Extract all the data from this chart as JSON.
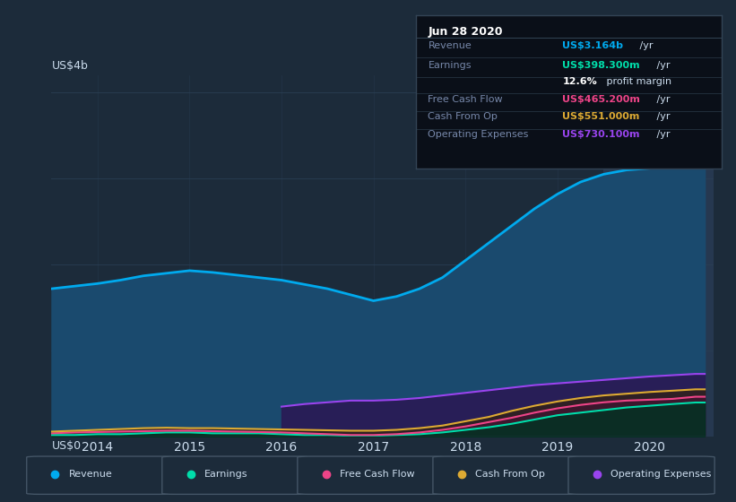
{
  "background_color": "#1c2b3a",
  "plot_bg_color": "#1c2b3a",
  "grid_color": "#2a3f55",
  "text_color": "#ccddee",
  "ylabel_text": "US$4b",
  "ylabel0_text": "US$0",
  "years": [
    2013.5,
    2013.75,
    2014.0,
    2014.25,
    2014.5,
    2014.75,
    2015.0,
    2015.25,
    2015.5,
    2015.75,
    2016.0,
    2016.25,
    2016.5,
    2016.75,
    2017.0,
    2017.25,
    2017.5,
    2017.75,
    2018.0,
    2018.25,
    2018.5,
    2018.75,
    2019.0,
    2019.25,
    2019.5,
    2019.75,
    2020.0,
    2020.25,
    2020.5,
    2020.6
  ],
  "revenue": [
    1.72,
    1.75,
    1.78,
    1.82,
    1.87,
    1.9,
    1.93,
    1.91,
    1.88,
    1.85,
    1.82,
    1.77,
    1.72,
    1.65,
    1.58,
    1.63,
    1.72,
    1.85,
    2.05,
    2.25,
    2.45,
    2.65,
    2.82,
    2.96,
    3.05,
    3.1,
    3.12,
    3.14,
    3.16,
    3.164
  ],
  "earnings": [
    0.02,
    0.02,
    0.03,
    0.03,
    0.04,
    0.05,
    0.05,
    0.04,
    0.04,
    0.04,
    0.03,
    0.02,
    0.02,
    0.01,
    0.01,
    0.02,
    0.03,
    0.05,
    0.08,
    0.11,
    0.15,
    0.2,
    0.25,
    0.28,
    0.31,
    0.34,
    0.36,
    0.38,
    0.398,
    0.398
  ],
  "free_cash_flow": [
    0.04,
    0.05,
    0.055,
    0.06,
    0.065,
    0.07,
    0.07,
    0.065,
    0.06,
    0.055,
    0.05,
    0.04,
    0.03,
    0.02,
    0.02,
    0.03,
    0.05,
    0.08,
    0.12,
    0.17,
    0.22,
    0.28,
    0.33,
    0.37,
    0.4,
    0.42,
    0.43,
    0.44,
    0.465,
    0.465
  ],
  "cash_from_op": [
    0.06,
    0.07,
    0.08,
    0.09,
    0.1,
    0.105,
    0.1,
    0.1,
    0.095,
    0.09,
    0.085,
    0.08,
    0.075,
    0.07,
    0.07,
    0.08,
    0.1,
    0.13,
    0.18,
    0.23,
    0.3,
    0.36,
    0.41,
    0.45,
    0.48,
    0.5,
    0.52,
    0.535,
    0.551,
    0.551
  ],
  "op_expenses": [
    0.0,
    0.0,
    0.0,
    0.0,
    0.0,
    0.0,
    0.0,
    0.0,
    0.0,
    0.0,
    0.35,
    0.38,
    0.4,
    0.42,
    0.42,
    0.43,
    0.45,
    0.48,
    0.51,
    0.54,
    0.57,
    0.6,
    0.62,
    0.64,
    0.66,
    0.68,
    0.7,
    0.715,
    0.73,
    0.73
  ],
  "revenue_color": "#00aaee",
  "revenue_fill": "#1a4a6e",
  "earnings_color": "#00ddaa",
  "free_cash_flow_color": "#ee4488",
  "cash_from_op_color": "#ddaa33",
  "op_expenses_color": "#9944ee",
  "highlight_x_start": 2019.5,
  "highlight_x_end": 2020.7,
  "highlight_color": "#263850",
  "tooltip_bg": "#0a0f18",
  "tooltip_border": "#334455",
  "tooltip_title": "Jun 28 2020",
  "xticklabels": [
    "2014",
    "2015",
    "2016",
    "2017",
    "2018",
    "2019",
    "2020"
  ],
  "xtick_positions": [
    2014.0,
    2015.0,
    2016.0,
    2017.0,
    2018.0,
    2019.0,
    2020.0
  ],
  "ylim": [
    0,
    4.2
  ],
  "xlim": [
    2013.5,
    2020.7
  ],
  "legend_items": [
    "Revenue",
    "Earnings",
    "Free Cash Flow",
    "Cash From Op",
    "Operating Expenses"
  ],
  "legend_colors": [
    "#00aaee",
    "#00ddaa",
    "#ee4488",
    "#ddaa33",
    "#9944ee"
  ],
  "tooltip_rows": [
    {
      "label": "Revenue",
      "value": "US$3.164b",
      "unit": " /yr",
      "vcolor": "#00aaee"
    },
    {
      "label": "Earnings",
      "value": "US$398.300m",
      "unit": " /yr",
      "vcolor": "#00ddaa"
    },
    {
      "label": "",
      "value": "12.6%",
      "unit": " profit margin",
      "vcolor": "#ffffff"
    },
    {
      "label": "Free Cash Flow",
      "value": "US$465.200m",
      "unit": " /yr",
      "vcolor": "#ee4488"
    },
    {
      "label": "Cash From Op",
      "value": "US$551.000m",
      "unit": " /yr",
      "vcolor": "#ddaa33"
    },
    {
      "label": "Operating Expenses",
      "value": "US$730.100m",
      "unit": " /yr",
      "vcolor": "#9944ee"
    }
  ]
}
